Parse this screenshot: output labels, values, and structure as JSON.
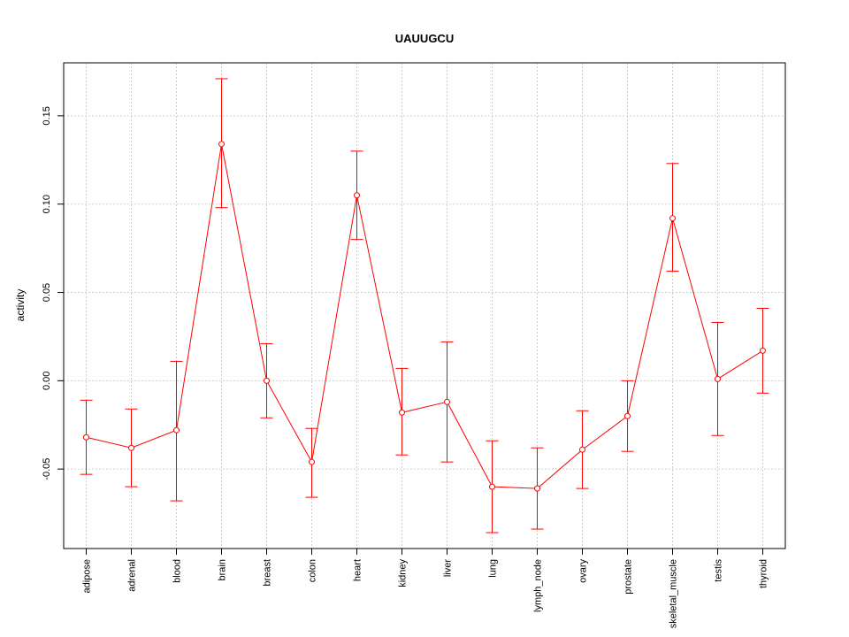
{
  "chart_data": {
    "type": "line",
    "title": "UAUUGCU",
    "xlabel": "",
    "ylabel": "activity",
    "ylim": [
      -0.095,
      0.18
    ],
    "yticks": [
      -0.05,
      0.0,
      0.05,
      0.1,
      0.15
    ],
    "ytick_labels": [
      "-0.05",
      "0.00",
      "0.05",
      "0.10",
      "0.15"
    ],
    "grid": true,
    "series_color": "#ff0000",
    "categories": [
      "adipose",
      "adrenal",
      "blood",
      "brain",
      "breast",
      "colon",
      "heart",
      "kidney",
      "liver",
      "lung",
      "lymph_node",
      "ovary",
      "prostate",
      "skeletal_muscle",
      "testis",
      "thyroid"
    ],
    "values": [
      -0.032,
      -0.038,
      -0.028,
      0.134,
      0.0,
      -0.046,
      0.105,
      -0.018,
      -0.012,
      -0.06,
      -0.061,
      -0.039,
      -0.02,
      0.092,
      0.001,
      0.017
    ],
    "error_low": [
      -0.053,
      -0.06,
      -0.068,
      0.098,
      -0.021,
      -0.066,
      0.08,
      -0.042,
      -0.046,
      -0.086,
      -0.084,
      -0.061,
      -0.04,
      0.062,
      -0.031,
      -0.007
    ],
    "error_high": [
      -0.011,
      -0.016,
      0.011,
      0.171,
      0.021,
      -0.027,
      0.13,
      0.007,
      0.022,
      -0.034,
      -0.038,
      -0.017,
      0.0,
      0.123,
      0.033,
      0.041
    ]
  }
}
